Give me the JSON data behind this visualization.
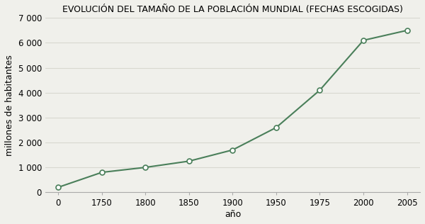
{
  "title": "EVOLUCIÓN DEL TAMAÑO DE LA POBLACIÓN MUNDIAL (FECHAS ESCOGIDAS)",
  "xlabel": "año",
  "ylabel": "millones de habitantes",
  "x_labels": [
    "0",
    "1750",
    "1800",
    "1850",
    "1900",
    "1950",
    "1975",
    "2000",
    "2005"
  ],
  "y": [
    200,
    800,
    1000,
    1250,
    1700,
    2600,
    4100,
    6100,
    6500
  ],
  "line_color": "#4a7f5a",
  "marker": "o",
  "marker_facecolor": "white",
  "marker_edgecolor": "#4a7f5a",
  "marker_size": 5,
  "ylim": [
    0,
    7000
  ],
  "yticks": [
    0,
    1000,
    2000,
    3000,
    4000,
    5000,
    6000,
    7000
  ],
  "ytick_labels": [
    "0",
    "1 000",
    "2 000",
    "3 000",
    "4 000",
    "5 000",
    "6 000",
    "7 000"
  ],
  "background_color": "#f0f0eb",
  "plot_bg_color": "#f0f0eb",
  "grid_color": "#d8d8d0",
  "title_fontsize": 9,
  "axis_label_fontsize": 9,
  "tick_fontsize": 8.5
}
